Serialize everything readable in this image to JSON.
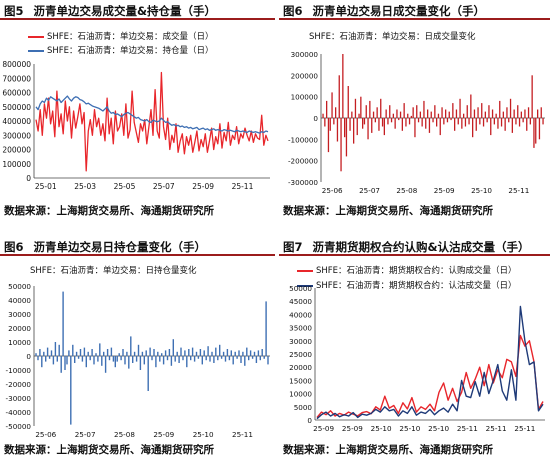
{
  "source_text": "数据来源：上海期货交易所、海通期货研究所",
  "panels": [
    {
      "fig": "图5",
      "title": "沥青单边交易成交量&持仓量（手）"
    },
    {
      "fig": "图6",
      "title": "沥青单边交易日成交量变化（手）"
    },
    {
      "fig": "图6",
      "title": "沥青单边交易日持仓量变化（手）"
    },
    {
      "fig": "图7",
      "title": "沥青期货期权合约认购&认沽成交量（手）"
    }
  ],
  "colors": {
    "red": "#e8262b",
    "blue": "#3e6fb3",
    "navy": "#1e3a78"
  },
  "chart_data": [
    {
      "type": "line",
      "x_ticks": [
        "25-01",
        "25-03",
        "25-05",
        "25-07",
        "25-09",
        "25-11"
      ],
      "ylim": [
        0,
        800000
      ],
      "y_ticks": [
        "0",
        "100000",
        "200000",
        "300000",
        "400000",
        "500000",
        "600000",
        "700000",
        "800000"
      ],
      "series": [
        {
          "name": "SHFE：石油沥青：单边交易：成交量（日）",
          "color": "#e8262b",
          "values": [
            410000,
            330000,
            480000,
            300000,
            520000,
            420000,
            560000,
            380000,
            470000,
            290000,
            610000,
            360000,
            450000,
            310000,
            540000,
            400000,
            500000,
            280000,
            470000,
            350000,
            430000,
            520000,
            380000,
            460000,
            50000,
            330000,
            410000,
            300000,
            480000,
            360000,
            420000,
            300000,
            380000,
            260000,
            560000,
            310000,
            420000,
            240000,
            470000,
            330000,
            360000,
            450000,
            300000,
            520000,
            280000,
            340000,
            610000,
            390000,
            320000,
            250000,
            380000,
            330000,
            410000,
            240000,
            360000,
            480000,
            300000,
            620000,
            330000,
            280000,
            740000,
            360000,
            270000,
            420000,
            200000,
            300000,
            250000,
            380000,
            180000,
            260000,
            310000,
            170000,
            290000,
            230000,
            300000,
            180000,
            250000,
            330000,
            190000,
            270000,
            220000,
            310000,
            180000,
            260000,
            350000,
            200000,
            290000,
            240000,
            380000,
            210000,
            320000,
            260000,
            390000,
            230000,
            300000,
            270000,
            360000,
            240000,
            310000,
            280000,
            350000,
            300000,
            260000,
            330000,
            250000,
            310000,
            280000,
            270000,
            440000,
            230000,
            300000,
            260000
          ]
        },
        {
          "name": "SHFE：石油沥青：单边交易：持仓量（日）",
          "color": "#3e6fb3",
          "values": [
            500000,
            480000,
            520000,
            540000,
            530000,
            560000,
            545000,
            570000,
            560000,
            550000,
            540000,
            555000,
            530000,
            545000,
            560000,
            575000,
            555000,
            540000,
            560000,
            570000,
            565000,
            550000,
            545000,
            535000,
            520000,
            525000,
            515000,
            505000,
            500000,
            495000,
            490000,
            480000,
            470000,
            485000,
            500000,
            470000,
            455000,
            460000,
            445000,
            450000,
            440000,
            430000,
            445000,
            455000,
            460000,
            450000,
            440000,
            430000,
            420000,
            425000,
            410000,
            405000,
            400000,
            410000,
            395000,
            390000,
            405000,
            400000,
            395000,
            400000,
            420000,
            405000,
            390000,
            395000,
            380000,
            370000,
            375000,
            365000,
            370000,
            360000,
            365000,
            355000,
            360000,
            350000,
            355000,
            345000,
            350000,
            355000,
            340000,
            345000,
            350000,
            340000,
            345000,
            335000,
            340000,
            345000,
            335000,
            340000,
            335000,
            330000,
            340000,
            335000,
            330000,
            335000,
            330000,
            325000,
            335000,
            330000,
            325000,
            330000,
            325000,
            320000,
            330000,
            325000,
            320000,
            325000,
            320000,
            315000,
            325000,
            320000,
            330000,
            325000
          ]
        }
      ]
    },
    {
      "type": "bar",
      "x_ticks": [
        "25-06",
        "25-07",
        "25-08",
        "25-09",
        "25-10",
        "25-11"
      ],
      "ylim": [
        -300000,
        300000
      ],
      "y_ticks": [
        "-300000",
        "-200000",
        "-100000",
        "0",
        "100000",
        "200000",
        "300000"
      ],
      "series": [
        {
          "name": "SHFE：石油沥青：单边交易：日成交量变化",
          "color": "#c41e22",
          "values": [
            20000,
            -40000,
            80000,
            -160000,
            -60000,
            120000,
            -30000,
            50000,
            -110000,
            200000,
            -250000,
            300000,
            -90000,
            -180000,
            150000,
            -60000,
            30000,
            -120000,
            90000,
            -80000,
            20000,
            100000,
            -50000,
            -30000,
            60000,
            -100000,
            80000,
            -70000,
            30000,
            -20000,
            50000,
            -60000,
            90000,
            -40000,
            -80000,
            40000,
            -30000,
            60000,
            -20000,
            20000,
            -50000,
            40000,
            -10000,
            30000,
            -60000,
            70000,
            -40000,
            20000,
            -30000,
            10000,
            50000,
            -90000,
            60000,
            -20000,
            30000,
            -40000,
            80000,
            -50000,
            40000,
            -70000,
            30000,
            -20000,
            60000,
            -40000,
            20000,
            -80000,
            50000,
            -30000,
            40000,
            -20000,
            30000,
            -10000,
            70000,
            -60000,
            40000,
            -30000,
            90000,
            -50000,
            20000,
            -40000,
            60000,
            -30000,
            110000,
            -90000,
            40000,
            -60000,
            50000,
            -30000,
            70000,
            -40000,
            30000,
            -20000,
            60000,
            -80000,
            40000,
            -30000,
            20000,
            -50000,
            80000,
            -40000,
            30000,
            -60000,
            50000,
            -20000,
            90000,
            -70000,
            40000,
            -30000,
            60000,
            -40000,
            30000,
            -20000,
            40000,
            -60000,
            50000,
            -30000,
            200000,
            -140000,
            -120000,
            40000,
            -100000,
            50000,
            -30000
          ]
        }
      ]
    },
    {
      "type": "bar",
      "x_ticks": [
        "25-06",
        "25-07",
        "25-08",
        "25-09",
        "25-10",
        "25-11"
      ],
      "ylim": [
        -50000,
        50000
      ],
      "y_ticks": [
        "-50000",
        "-40000",
        "-30000",
        "-20000",
        "-10000",
        "0",
        "10000",
        "20000",
        "30000",
        "40000",
        "50000"
      ],
      "series": [
        {
          "name": "SHFE：石油沥青：单边交易：日持仓量变化",
          "color": "#3e6fb3",
          "values": [
            2000,
            -3000,
            5000,
            -8000,
            3000,
            -4000,
            6000,
            -2000,
            4000,
            -6000,
            10000,
            -4000,
            8000,
            -12000,
            46000,
            -10000,
            -6000,
            4000,
            -49000,
            8000,
            -5000,
            3000,
            -2000,
            5000,
            -4000,
            6000,
            -8000,
            3000,
            -3000,
            5000,
            -6000,
            2000,
            -4000,
            9000,
            -7000,
            3000,
            -12000,
            5000,
            -3000,
            6000,
            -4000,
            -8000,
            -4000,
            2000,
            -3000,
            5000,
            -6000,
            3000,
            -9000,
            14000,
            -5000,
            3000,
            -4000,
            8000,
            -10000,
            3000,
            -6000,
            4000,
            -25000,
            6000,
            -3000,
            5000,
            -8000,
            3000,
            -4000,
            2000,
            -6000,
            4000,
            -3000,
            5000,
            -7000,
            12000,
            -4000,
            3000,
            -5000,
            6000,
            -3000,
            4000,
            -8000,
            5000,
            -3000,
            6000,
            -4000,
            3000,
            -2000,
            5000,
            -6000,
            4000,
            -3000,
            7000,
            -4000,
            3000,
            -5000,
            6000,
            -3000,
            8000,
            -2000,
            3000,
            -4000,
            5000,
            -3000,
            4000,
            -6000,
            3000,
            -2000,
            4000,
            -5000,
            3000,
            -7000,
            6000,
            -3000,
            4000,
            -2000,
            3000,
            -5000,
            4000,
            -3000,
            5000,
            -2000,
            39000,
            -6000
          ]
        }
      ]
    },
    {
      "type": "line",
      "x_ticks": [
        "25-09",
        "25-10",
        "25-11"
      ],
      "x_extra_ticks": [
        "25-09",
        "25-09",
        "25-10",
        "25-10",
        "25-10",
        "25-11",
        "25-11",
        "25-11"
      ],
      "ylim": [
        0,
        50000
      ],
      "y_ticks": [
        "0",
        "5000",
        "10000",
        "15000",
        "20000",
        "25000",
        "30000",
        "35000",
        "40000",
        "45000",
        "50000"
      ],
      "series": [
        {
          "name": "SHFE：石油沥青：期货期权合约：认购成交量（日）",
          "color": "#e8262b",
          "values": [
            1000,
            3000,
            2000,
            3500,
            1500,
            2500,
            1800,
            3000,
            2200,
            1600,
            2800,
            3200,
            2400,
            5000,
            3800,
            9000,
            4500,
            5500,
            2500,
            6500,
            4200,
            8500,
            3000,
            5000,
            4000,
            6000,
            3500,
            10500,
            14000,
            7500,
            12000,
            7000,
            10500,
            18000,
            12000,
            15500,
            20000,
            13000,
            21000,
            14000,
            19000,
            16000,
            23000,
            22000,
            16500,
            32000,
            28000,
            30000,
            22000,
            4000,
            7000
          ]
        },
        {
          "name": "SHFE：石油沥青：期货期权合约：认沽成交量（日）",
          "color": "#1e3a78",
          "values": [
            500,
            2000,
            3000,
            1500,
            2500,
            1200,
            2000,
            1500,
            2800,
            1000,
            2200,
            1800,
            2500,
            4000,
            3000,
            5000,
            3500,
            4000,
            1500,
            3500,
            2500,
            5000,
            1800,
            3000,
            2500,
            4000,
            2000,
            3500,
            4500,
            3000,
            6000,
            3500,
            15000,
            9000,
            8500,
            14500,
            9000,
            18000,
            10000,
            15000,
            21000,
            11000,
            7500,
            19000,
            7500,
            43000,
            30000,
            21000,
            22000,
            3500,
            6000
          ]
        }
      ]
    }
  ]
}
